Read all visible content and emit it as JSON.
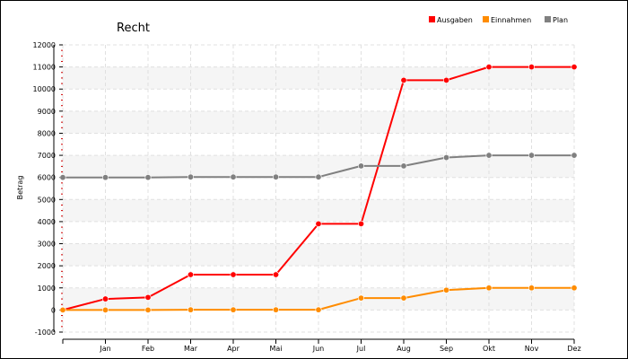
{
  "chart_data": {
    "type": "line",
    "title": "Recht",
    "ylabel": "Betrag",
    "xlabel": "",
    "categories": [
      "",
      "Jan",
      "Feb",
      "Mar",
      "Apr",
      "Mai",
      "Jun",
      "Jul",
      "Aug",
      "Sep",
      "Okt",
      "Nov",
      "Dez"
    ],
    "ylim": [
      -1000,
      12000
    ],
    "yticks": [
      -1000,
      0,
      1000,
      2000,
      3000,
      4000,
      5000,
      6000,
      7000,
      8000,
      9000,
      10000,
      11000,
      12000
    ],
    "grid": true,
    "legend_position": "top-right",
    "series": [
      {
        "name": "Ausgaben",
        "color": "#ff0000",
        "values": [
          0,
          500,
          570,
          1600,
          1600,
          1600,
          3900,
          3900,
          10400,
          10400,
          11000,
          11000,
          11000
        ]
      },
      {
        "name": "Einnahmen",
        "color": "#ff8c00",
        "values": [
          0,
          0,
          0,
          10,
          10,
          10,
          10,
          540,
          540,
          900,
          1000,
          1000,
          1000
        ]
      },
      {
        "name": "Plan",
        "color": "#808080",
        "values": [
          6000,
          6000,
          6000,
          6020,
          6020,
          6020,
          6020,
          6520,
          6520,
          6900,
          7000,
          7000,
          7000
        ]
      }
    ]
  }
}
